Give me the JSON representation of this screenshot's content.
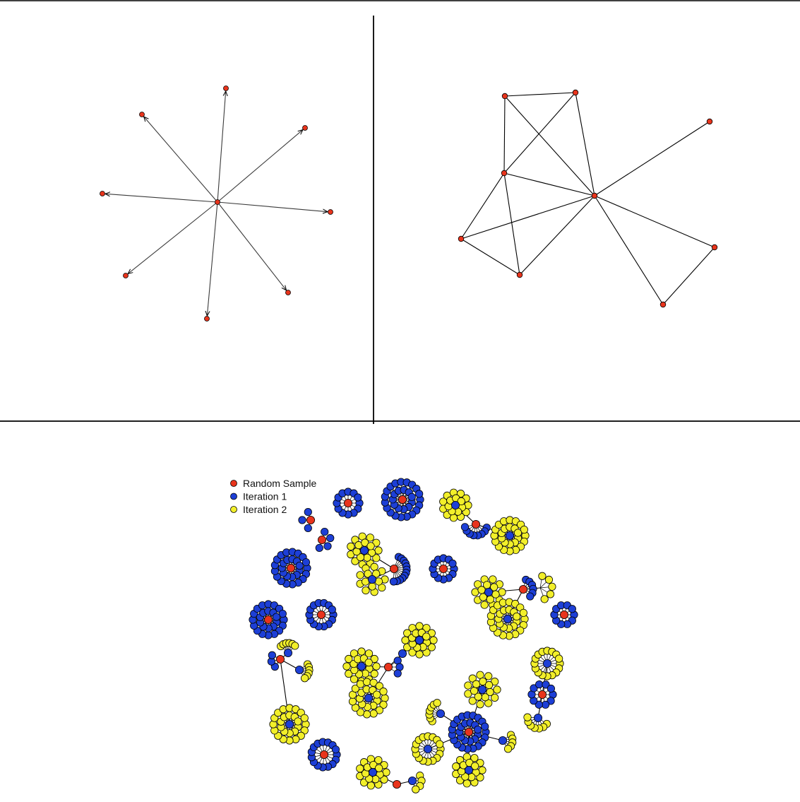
{
  "legend": {
    "entries": [
      {
        "label": "Random Sample",
        "color": "#e8341c"
      },
      {
        "label": "Iteration 1",
        "color": "#1d3fd6"
      },
      {
        "label": "Iteration 2",
        "color": "#f2ef2a"
      }
    ]
  },
  "colors": {
    "red_node": "#e8341c",
    "blue_node": "#1d3fd6",
    "yellow_node": "#f2ef2a",
    "edge": "#000000"
  },
  "panels": {
    "star_graph": {
      "nodes": 9,
      "edges": 8,
      "directed": true
    },
    "small_network": {
      "nodes": 9,
      "edges": 14,
      "directed": false
    },
    "snowball_sample": {
      "layers": [
        "Random Sample",
        "Iteration 1",
        "Iteration 2"
      ]
    }
  }
}
